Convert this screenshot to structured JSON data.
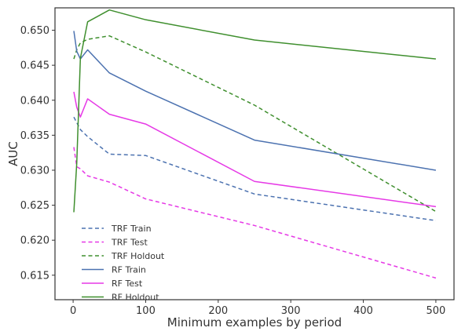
{
  "chart_data": {
    "type": "line",
    "title": "",
    "xlabel": "Minimum examples by period",
    "ylabel": "AUC",
    "xlim": [
      -25,
      525
    ],
    "ylim": [
      0.6115,
      0.6532
    ],
    "xticks": [
      0,
      100,
      200,
      300,
      400,
      500
    ],
    "xtick_labels": [
      "0",
      "100",
      "200",
      "300",
      "400",
      "500"
    ],
    "yticks": [
      0.615,
      0.62,
      0.625,
      0.63,
      0.635,
      0.64,
      0.645,
      0.65
    ],
    "ytick_labels": [
      "0.615",
      "0.620",
      "0.625",
      "0.630",
      "0.635",
      "0.640",
      "0.645",
      "0.650"
    ],
    "grid": false,
    "legend_position": "lower-left",
    "x": [
      1,
      5,
      10,
      20,
      50,
      100,
      250,
      500
    ],
    "series": [
      {
        "name": "TRF Train",
        "color": "#4c72b0",
        "dash": "dashed",
        "values": [
          0.6376,
          0.6368,
          0.6358,
          0.6348,
          0.6323,
          0.6321,
          0.6266,
          0.6228
        ]
      },
      {
        "name": "TRF Test",
        "color": "#e639e6",
        "dash": "dashed",
        "values": [
          0.6333,
          0.6305,
          0.6302,
          0.6292,
          0.6283,
          0.6259,
          0.6221,
          0.6146
        ]
      },
      {
        "name": "TRF Holdout",
        "color": "#3f8f2e",
        "dash": "dashed",
        "values": [
          0.6459,
          0.6472,
          0.6482,
          0.6487,
          0.6492,
          0.6469,
          0.6393,
          0.6241
        ]
      },
      {
        "name": "RF Train",
        "color": "#4c72b0",
        "dash": "solid",
        "values": [
          0.6499,
          0.647,
          0.6459,
          0.6472,
          0.6439,
          0.6413,
          0.6343,
          0.63
        ]
      },
      {
        "name": "RF Test",
        "color": "#e639e6",
        "dash": "solid",
        "values": [
          0.6412,
          0.639,
          0.6376,
          0.6402,
          0.638,
          0.6366,
          0.6284,
          0.6248
        ]
      },
      {
        "name": "RF Holdout",
        "color": "#3f8f2e",
        "dash": "solid",
        "values": [
          0.624,
          0.631,
          0.646,
          0.6512,
          0.6529,
          0.6515,
          0.6486,
          0.6459
        ]
      }
    ]
  }
}
